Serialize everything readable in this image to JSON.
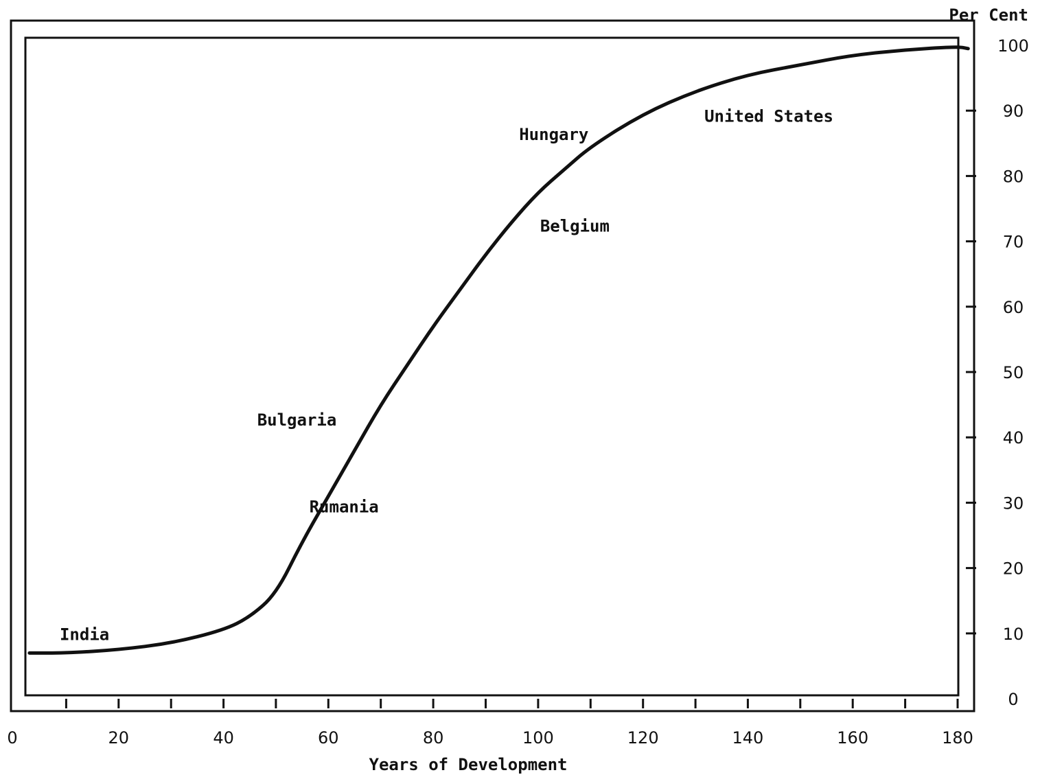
{
  "chart_data": {
    "type": "line",
    "xlabel": "Years of Development",
    "ylabel": "Per Cent",
    "xlim": [
      0,
      182
    ],
    "ylim": [
      0,
      100
    ],
    "x_ticks": [
      "0",
      "20",
      "40",
      "60",
      "80",
      "100",
      "120",
      "140",
      "160",
      "180"
    ],
    "y_ticks": [
      "0",
      "10",
      "20",
      "30",
      "40",
      "50",
      "60",
      "70",
      "80",
      "90",
      "100"
    ],
    "grid": false,
    "legend": "none",
    "series": [
      {
        "points": [
          [
            3,
            7
          ],
          [
            10,
            7
          ],
          [
            20,
            7.5
          ],
          [
            30,
            8.5
          ],
          [
            40,
            10.5
          ],
          [
            45,
            12.5
          ],
          [
            50,
            16
          ],
          [
            55,
            24
          ],
          [
            60,
            31
          ],
          [
            65,
            38
          ],
          [
            70,
            45
          ],
          [
            75,
            51
          ],
          [
            80,
            57
          ],
          [
            85,
            62.5
          ],
          [
            90,
            68
          ],
          [
            95,
            73
          ],
          [
            100,
            77.5
          ],
          [
            105,
            81
          ],
          [
            110,
            84.5
          ],
          [
            120,
            89.5
          ],
          [
            130,
            93
          ],
          [
            140,
            95.5
          ],
          [
            150,
            97
          ],
          [
            160,
            98.5
          ],
          [
            170,
            99.3
          ],
          [
            180,
            99.8
          ],
          [
            182,
            99.5
          ]
        ]
      }
    ],
    "annotations": [
      {
        "text": "India",
        "x": 13.5,
        "y": 9
      },
      {
        "text": "Rumania",
        "x": 63,
        "y": 28.5
      },
      {
        "text": "Bulgaria",
        "x": 54,
        "y": 41.8
      },
      {
        "text": "Belgium",
        "x": 107,
        "y": 71.5
      },
      {
        "text": "Hungary",
        "x": 103,
        "y": 85.5
      },
      {
        "text": "United States",
        "x": 144,
        "y": 88.3
      }
    ],
    "colors": {
      "line": "#111111",
      "frame": "#111111",
      "background": "#ffffff"
    }
  }
}
